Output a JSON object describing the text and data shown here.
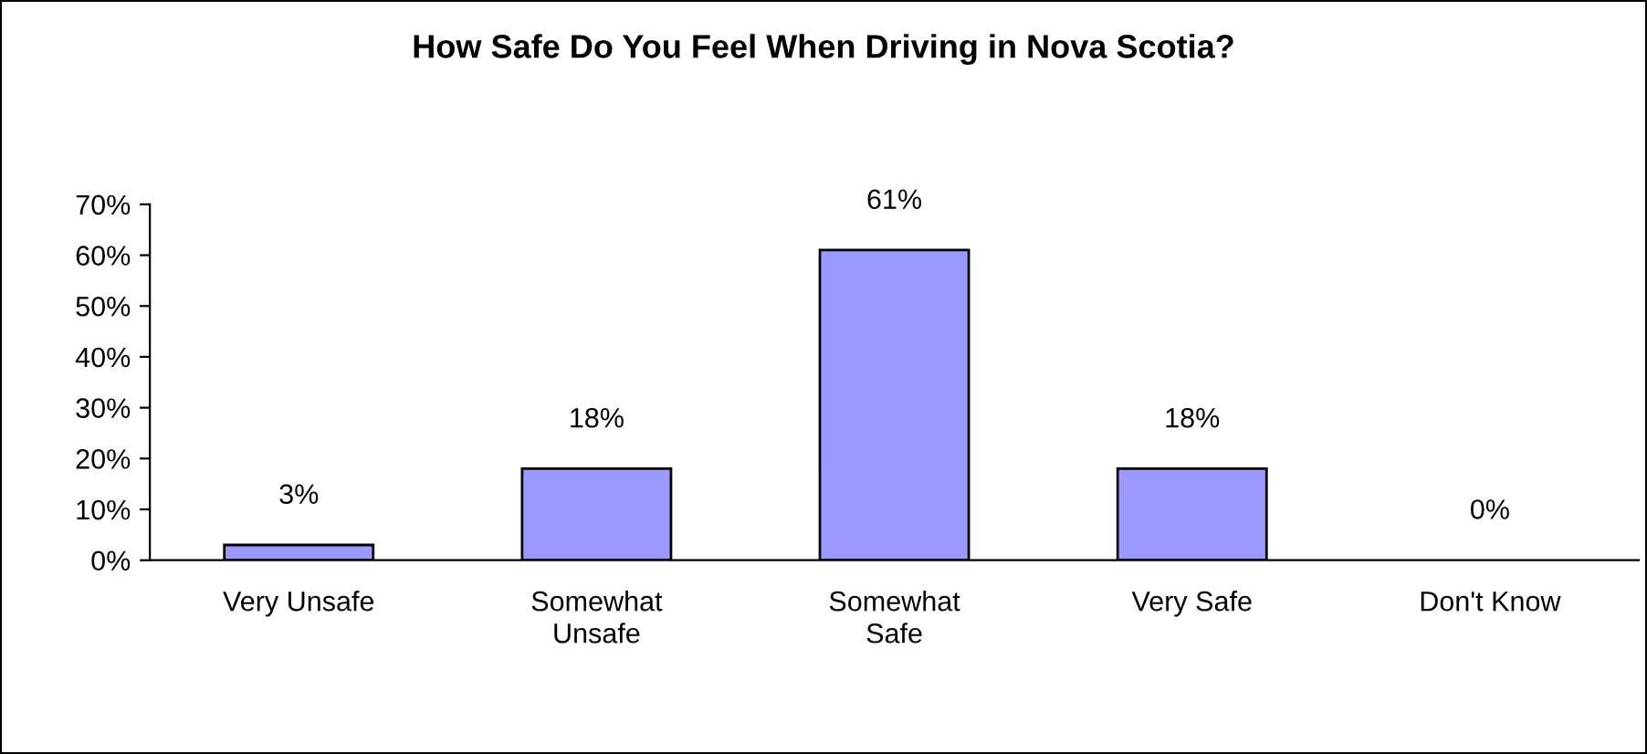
{
  "chart_data": {
    "type": "bar",
    "title": "How Safe Do You Feel When Driving in Nova Scotia?",
    "categories": [
      "Very Unsafe",
      "Somewhat\nUnsafe",
      "Somewhat\nSafe",
      "Very Safe",
      "Don't Know"
    ],
    "values": [
      3,
      18,
      61,
      18,
      0
    ],
    "value_labels": [
      "3%",
      "18%",
      "61%",
      "18%",
      "0%"
    ],
    "color": "#9999ff",
    "ylim": [
      0,
      70
    ],
    "yticks": [
      {
        "value": 0,
        "label": "0%"
      },
      {
        "value": 10,
        "label": "10%"
      },
      {
        "value": 20,
        "label": "20%"
      },
      {
        "value": 30,
        "label": "30%"
      },
      {
        "value": 40,
        "label": "40%"
      },
      {
        "value": 50,
        "label": "50%"
      },
      {
        "value": 60,
        "label": "60%"
      },
      {
        "value": 70,
        "label": "70%"
      }
    ],
    "grid": false,
    "legend": false
  }
}
